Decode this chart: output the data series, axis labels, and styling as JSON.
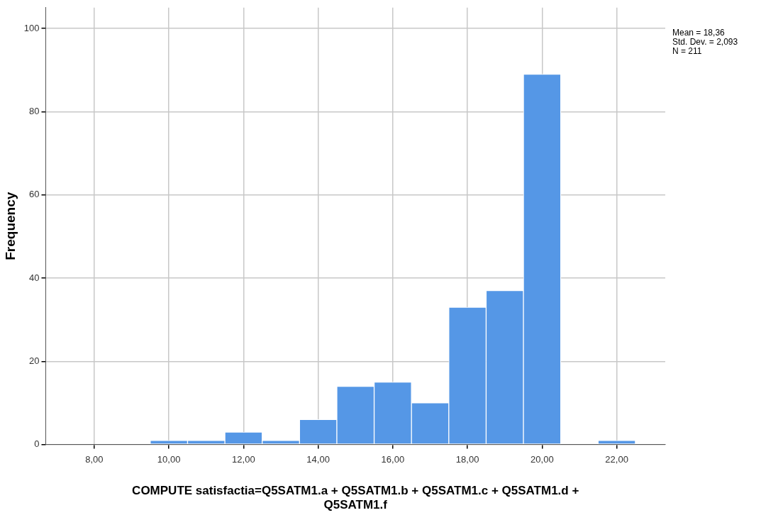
{
  "chart_data": {
    "type": "histogram",
    "xlabel": "COMPUTE satisfactia=Q5SATM1.a + Q5SATM1.b + Q5SATM1.c + Q5SATM1.d + Q5SATM1.f",
    "ylabel": "Frequency",
    "bins": [
      9.5,
      10.5,
      11.5,
      12.5,
      13.5,
      14.5,
      15.5,
      16.5,
      17.5,
      18.5,
      19.5,
      20.5,
      21.5,
      22.5
    ],
    "values": [
      1,
      1,
      3,
      1,
      6,
      14,
      15,
      10,
      33,
      37,
      89,
      0,
      1
    ],
    "color": "#5597e6",
    "xlim": [
      6.7,
      23.3
    ],
    "xticks": [
      {
        "value": 8,
        "label": "8,00"
      },
      {
        "value": 10,
        "label": "10,00"
      },
      {
        "value": 12,
        "label": "12,00"
      },
      {
        "value": 14,
        "label": "14,00"
      },
      {
        "value": 16,
        "label": "16,00"
      },
      {
        "value": 18,
        "label": "18,00"
      },
      {
        "value": 20,
        "label": "20,00"
      },
      {
        "value": 22,
        "label": "22,00"
      }
    ],
    "ylim": [
      0,
      105
    ],
    "yticks": [
      0,
      20,
      40,
      60,
      80,
      100
    ],
    "grid": true,
    "annotations": [
      "Mean = 18,36",
      "Std. Dev. = 2,093",
      "N = 211"
    ]
  }
}
